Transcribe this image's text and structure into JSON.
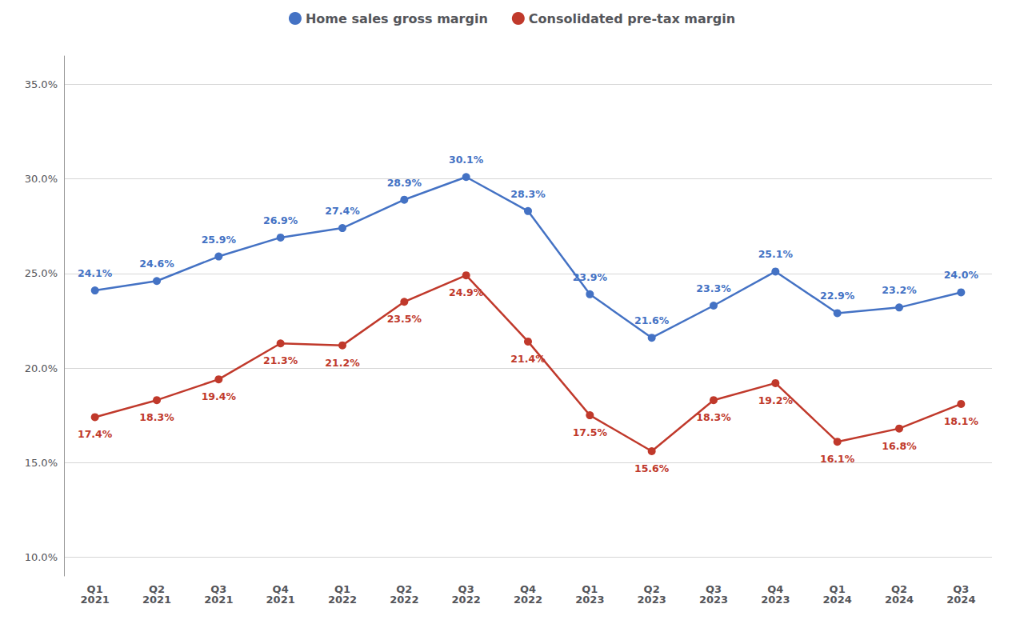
{
  "chart_data": {
    "type": "line",
    "categories": [
      "Q1\n2021",
      "Q2\n2021",
      "Q3\n2021",
      "Q4\n2021",
      "Q1\n2022",
      "Q2\n2022",
      "Q3\n2022",
      "Q4\n2022",
      "Q1\n2023",
      "Q2\n2023",
      "Q3\n2023",
      "Q4\n2023",
      "Q1\n2024",
      "Q2\n2024",
      "Q3\n2024"
    ],
    "series": [
      {
        "name": "Home sales gross margin",
        "color": "#4472C4",
        "marker": "circle",
        "values": [
          24.1,
          24.6,
          25.9,
          26.9,
          27.4,
          28.9,
          30.1,
          28.3,
          23.9,
          21.6,
          23.3,
          25.1,
          22.9,
          23.2,
          24.0
        ],
        "value_labels": [
          "24.1%",
          "24.6%",
          "25.9%",
          "26.9%",
          "27.4%",
          "28.9%",
          "30.1%",
          "28.3%",
          "23.9%",
          "21.6%",
          "23.3%",
          "25.1%",
          "22.9%",
          "23.2%",
          "24.0%"
        ]
      },
      {
        "name": "Consolidated pre-tax margin",
        "color": "#C0392B",
        "marker": "circle",
        "values": [
          17.4,
          18.3,
          19.4,
          21.3,
          21.2,
          23.5,
          24.9,
          21.4,
          17.5,
          15.6,
          18.3,
          19.2,
          16.1,
          16.8,
          18.1
        ],
        "value_labels": [
          "17.4%",
          "18.3%",
          "19.4%",
          "21.3%",
          "21.2%",
          "23.5%",
          "24.9%",
          "21.4%",
          "17.5%",
          "15.6%",
          "18.3%",
          "19.2%",
          "16.1%",
          "16.8%",
          "18.1%"
        ]
      }
    ],
    "ylim": [
      9.0,
      36.5
    ],
    "yticks": [
      {
        "value": 10.0,
        "label": "10.0%"
      },
      {
        "value": 15.0,
        "label": "15.0%"
      },
      {
        "value": 20.0,
        "label": "20.0%"
      },
      {
        "value": 25.0,
        "label": "25.0%"
      },
      {
        "value": 30.0,
        "label": "30.0%"
      },
      {
        "value": 35.0,
        "label": "35.0%"
      }
    ],
    "grid": true,
    "legend": "top",
    "data_labels": true
  }
}
